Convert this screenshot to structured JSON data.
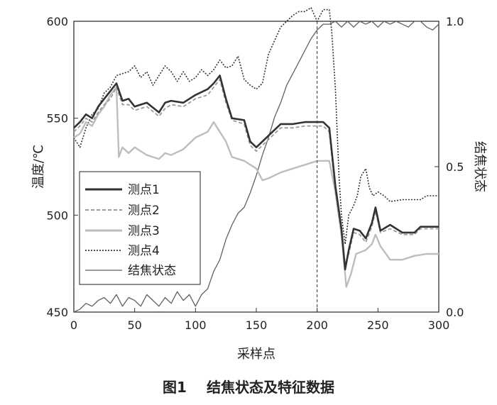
{
  "figure": {
    "caption_number": "图1",
    "caption_text": "结焦状态及特征数据"
  },
  "chart_data": {
    "type": "line",
    "xlabel": "采样点",
    "ylabel_left": "温度/℃",
    "ylabel_right": "结焦状态",
    "xlim": [
      0,
      300
    ],
    "ylim_left": [
      450,
      600
    ],
    "ylim_right": [
      0,
      1
    ],
    "x_ticks": [
      0,
      50,
      100,
      150,
      200,
      250,
      300
    ],
    "y_ticks_left": [
      450,
      500,
      550,
      600
    ],
    "y_ticks_right": [
      "0.0",
      "0.5",
      "1.0"
    ],
    "y_ticks_right_values": [
      0,
      0.5,
      1
    ],
    "vline_x": 200,
    "legend_position": "center-left",
    "colors": {
      "s1": "#333333",
      "s2": "#999999",
      "s3": "#bdbdbd",
      "s4": "#333333",
      "coking": "#606060"
    },
    "series": [
      {
        "name": "测点1",
        "axis": "left",
        "style": "solid-thick",
        "x": [
          0,
          5,
          10,
          15,
          20,
          25,
          30,
          35,
          40,
          45,
          50,
          60,
          70,
          75,
          80,
          90,
          100,
          110,
          115,
          120,
          125,
          130,
          140,
          145,
          150,
          155,
          160,
          170,
          180,
          190,
          200,
          205,
          210,
          215,
          220,
          223,
          226,
          230,
          235,
          240,
          245,
          248,
          252,
          260,
          270,
          280,
          285,
          290,
          300
        ],
        "y": [
          545,
          548,
          552,
          550,
          556,
          560,
          564,
          568,
          559,
          560,
          556,
          558,
          553,
          558,
          559,
          558,
          562,
          565,
          568,
          572,
          560,
          550,
          549,
          538,
          535,
          538,
          541,
          547,
          547,
          548,
          548,
          548,
          545,
          515,
          493,
          472,
          482,
          493,
          492,
          488,
          496,
          504,
          492,
          495,
          491,
          491,
          494,
          494,
          494
        ]
      },
      {
        "name": "测点2",
        "axis": "left",
        "style": "dashed",
        "x": [
          0,
          5,
          10,
          15,
          20,
          25,
          30,
          35,
          40,
          45,
          50,
          60,
          70,
          75,
          80,
          90,
          100,
          110,
          115,
          120,
          125,
          130,
          140,
          145,
          150,
          155,
          160,
          170,
          180,
          190,
          200,
          205,
          210,
          215,
          220,
          223,
          226,
          230,
          235,
          240,
          245,
          248,
          252,
          260,
          270,
          280,
          285,
          290,
          300
        ],
        "y": [
          543,
          546,
          550,
          548,
          553,
          557,
          560,
          566,
          557,
          557,
          554,
          556,
          551,
          555,
          557,
          556,
          560,
          562,
          566,
          570,
          558,
          549,
          547,
          536,
          533,
          536,
          539,
          545,
          545,
          546,
          546,
          546,
          543,
          512,
          490,
          474,
          480,
          491,
          490,
          486,
          494,
          502,
          491,
          493,
          490,
          490,
          493,
          493,
          493
        ]
      },
      {
        "name": "测点3",
        "axis": "left",
        "style": "solid-light",
        "x": [
          0,
          5,
          10,
          15,
          20,
          25,
          30,
          35,
          37,
          40,
          45,
          50,
          60,
          70,
          75,
          80,
          90,
          100,
          110,
          115,
          120,
          125,
          130,
          140,
          145,
          150,
          155,
          160,
          170,
          180,
          190,
          200,
          205,
          210,
          215,
          220,
          224,
          228,
          232,
          240,
          245,
          248,
          252,
          260,
          270,
          280,
          290,
          300
        ],
        "y": [
          540,
          542,
          548,
          546,
          552,
          556,
          562,
          566,
          530,
          535,
          532,
          535,
          531,
          529,
          532,
          531,
          534,
          540,
          543,
          548,
          543,
          538,
          530,
          528,
          526,
          524,
          518,
          519,
          522,
          524,
          526,
          528,
          528,
          528,
          512,
          490,
          463,
          470,
          480,
          482,
          485,
          490,
          484,
          477,
          477,
          479,
          480,
          480
        ]
      },
      {
        "name": "测点4",
        "axis": "left",
        "style": "dotted",
        "x": [
          0,
          5,
          10,
          15,
          20,
          25,
          30,
          35,
          40,
          45,
          50,
          55,
          60,
          65,
          70,
          75,
          80,
          85,
          90,
          95,
          100,
          105,
          110,
          115,
          120,
          125,
          130,
          135,
          140,
          145,
          150,
          155,
          160,
          165,
          170,
          175,
          180,
          185,
          190,
          195,
          200,
          205,
          210,
          212,
          215,
          218,
          220,
          223,
          226,
          230,
          233,
          236,
          240,
          243,
          246,
          250,
          255,
          260,
          270,
          280,
          285,
          290,
          295,
          300
        ],
        "y": [
          540,
          535,
          545,
          552,
          555,
          563,
          566,
          572,
          573,
          574,
          577,
          571,
          574,
          567,
          572,
          577,
          574,
          569,
          574,
          569,
          571,
          575,
          572,
          575,
          580,
          576,
          577,
          582,
          570,
          567,
          565,
          568,
          583,
          590,
          597,
          600,
          603,
          605,
          605,
          607,
          600,
          606,
          606,
          595,
          565,
          520,
          500,
          485,
          500,
          505,
          510,
          520,
          524,
          514,
          510,
          512,
          510,
          507,
          508,
          508,
          508,
          510,
          510,
          510
        ]
      },
      {
        "name": "结焦状态",
        "axis": "right",
        "style": "solid-grey",
        "x": [
          0,
          5,
          10,
          15,
          20,
          25,
          30,
          35,
          40,
          45,
          50,
          55,
          60,
          65,
          70,
          75,
          80,
          85,
          90,
          95,
          100,
          105,
          110,
          115,
          120,
          125,
          130,
          135,
          140,
          145,
          150,
          155,
          160,
          165,
          170,
          175,
          180,
          185,
          190,
          195,
          200,
          205,
          210,
          215,
          220,
          225,
          230,
          235,
          240,
          245,
          250,
          255,
          260,
          265,
          270,
          275,
          280,
          285,
          290,
          295,
          300
        ],
        "y": [
          0.0,
          0.01,
          0.03,
          0.02,
          0.04,
          0.05,
          0.03,
          0.06,
          0.02,
          0.05,
          0.04,
          0.02,
          0.06,
          0.04,
          0.02,
          0.05,
          0.03,
          0.07,
          0.04,
          0.06,
          0.02,
          0.06,
          0.08,
          0.14,
          0.18,
          0.25,
          0.3,
          0.34,
          0.36,
          0.41,
          0.47,
          0.54,
          0.6,
          0.67,
          0.72,
          0.78,
          0.82,
          0.86,
          0.9,
          0.94,
          0.97,
          0.99,
          0.99,
          1.0,
          0.98,
          1.0,
          0.98,
          1.0,
          0.99,
          1.0,
          0.98,
          1.0,
          0.99,
          1.0,
          0.99,
          0.98,
          1.0,
          1.0,
          0.98,
          0.97,
          0.99
        ]
      }
    ]
  }
}
